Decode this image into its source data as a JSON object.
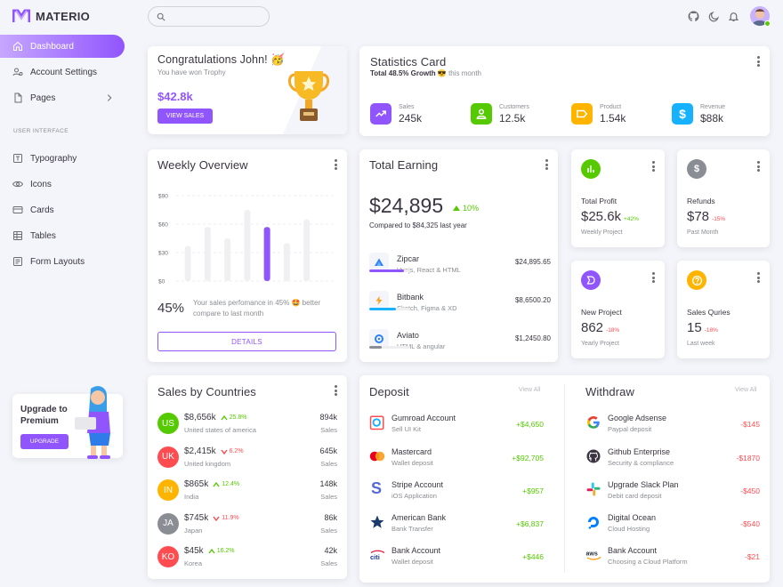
{
  "brand": {
    "name": "MATERIO",
    "color": "#9155fd"
  },
  "colors": {
    "primary": "#9155fd",
    "success": "#56ca00",
    "warning": "#ffb400",
    "info": "#16b1ff",
    "error": "#ff4c51",
    "secondary": "#8a8d93"
  },
  "sidebar": {
    "items": [
      {
        "label": "Dashboard",
        "icon": "home-icon",
        "active": true
      },
      {
        "label": "Account Settings",
        "icon": "account-cog-icon"
      },
      {
        "label": "Pages",
        "icon": "file-icon"
      }
    ],
    "section_label": "USER INTERFACE",
    "ui_items": [
      {
        "label": "Typography",
        "icon": "typography-icon"
      },
      {
        "label": "Icons",
        "icon": "eye-icon"
      },
      {
        "label": "Cards",
        "icon": "credit-card-icon"
      },
      {
        "label": "Tables",
        "icon": "table-icon"
      },
      {
        "label": "Form Layouts",
        "icon": "form-icon"
      }
    ],
    "upgrade": {
      "title": "Upgrade to Premium",
      "button": "UPGRADE"
    }
  },
  "topbar": {
    "search_placeholder": ""
  },
  "trophy": {
    "title": "Congratulations John! 🥳",
    "subtitle": "You have won Trophy",
    "amount": "$42.8k",
    "button": "VIEW SALES"
  },
  "statistics": {
    "title": "Statistics Card",
    "growth": "Total 48.5% Growth",
    "emoji": "😎",
    "period": "this month",
    "items": [
      {
        "label": "Sales",
        "value": "245k",
        "color": "#9155fd",
        "icon": "trending-up-icon"
      },
      {
        "label": "Customers",
        "value": "12.5k",
        "color": "#56ca00",
        "icon": "account-icon"
      },
      {
        "label": "Product",
        "value": "1.54k",
        "color": "#ffb400",
        "icon": "label-icon"
      },
      {
        "label": "Revenue",
        "value": "$88k",
        "color": "#16b1ff",
        "icon": "dollar-icon"
      }
    ]
  },
  "weekly": {
    "title": "Weekly Overview",
    "percent": "45%",
    "text": "Your sales perfomance in 45% 🤩 better compare to last month",
    "button": "DETAILS",
    "chart_data": {
      "type": "bar",
      "categories": [
        "",
        "",
        "",
        "",
        "",
        "",
        "",
        ""
      ],
      "values": [
        37,
        57,
        45,
        75,
        57,
        40,
        65,
        0
      ],
      "highlight_index": 4,
      "yticks": [
        "$90",
        "$60",
        "$30",
        "$0"
      ],
      "ylim": [
        0,
        90
      ]
    }
  },
  "earning": {
    "title": "Total Earning",
    "amount": "$24,895",
    "change": "10%",
    "compare": "Compared to $84,325 last year",
    "items": [
      {
        "name": "Zipcar",
        "sub": "Vuejs, React & HTML",
        "amount": "$24,895.65",
        "progress": 0.85,
        "color": "#9155fd",
        "icon": "zipcar-icon"
      },
      {
        "name": "Bitbank",
        "sub": "Sketch, Figma & XD",
        "amount": "$8,6500.20",
        "progress": 0.65,
        "color": "#16b1ff",
        "icon": "bitbank-icon"
      },
      {
        "name": "Aviato",
        "sub": "HTML & angular",
        "amount": "$1,2450.80",
        "progress": 0.3,
        "color": "#8a8d93",
        "icon": "aviato-icon"
      }
    ]
  },
  "mini_cards": [
    {
      "label": "Total Profit",
      "value": "$25.6k",
      "change": "+42%",
      "positive": true,
      "period": "Weekly Project",
      "color": "#56ca00",
      "icon": "poll-icon"
    },
    {
      "label": "Refunds",
      "value": "$78",
      "change": "-15%",
      "positive": false,
      "period": "Past Month",
      "color": "#8a8d93",
      "icon": "currency-icon"
    },
    {
      "label": "New Project",
      "value": "862",
      "change": "-18%",
      "positive": false,
      "period": "Yearly Project",
      "color": "#9155fd",
      "icon": "briefcase-icon"
    },
    {
      "label": "Sales Quries",
      "value": "15",
      "change": "-18%",
      "positive": false,
      "period": "Last week",
      "color": "#ffb400",
      "icon": "help-circle-icon"
    }
  ],
  "countries": {
    "title": "Sales by Countries",
    "sales_label": "Sales",
    "rows": [
      {
        "code": "US",
        "amount": "$8,656k",
        "change": "25.8%",
        "up": true,
        "country": "United states of america",
        "sales": "894k",
        "color": "#56ca00"
      },
      {
        "code": "UK",
        "amount": "$2,415k",
        "change": "6.2%",
        "up": false,
        "country": "United kingdom",
        "sales": "645k",
        "color": "#ff4c51"
      },
      {
        "code": "IN",
        "amount": "$865k",
        "change": "12.4%",
        "up": true,
        "country": "India",
        "sales": "148k",
        "color": "#ffb400"
      },
      {
        "code": "JA",
        "amount": "$745k",
        "change": "11.9%",
        "up": false,
        "country": "Japan",
        "sales": "86k",
        "color": "#8a8d93"
      },
      {
        "code": "KO",
        "amount": "$45k",
        "change": "16.2%",
        "up": true,
        "country": "Korea",
        "sales": "42k",
        "color": "#ff4c51"
      }
    ]
  },
  "deposit": {
    "title": "Deposit",
    "view_all": "View All",
    "rows": [
      {
        "name": "Gumroad Account",
        "sub": "Sell UI Kit",
        "amount": "+$4,650",
        "icon": "gumroad-icon"
      },
      {
        "name": "Mastercard",
        "sub": "Wallet deposit",
        "amount": "+$92,705",
        "icon": "mastercard-icon"
      },
      {
        "name": "Stripe Account",
        "sub": "iOS Application",
        "amount": "+$957",
        "icon": "stripe-icon"
      },
      {
        "name": "American Bank",
        "sub": "Bank Transfer",
        "amount": "+$6,837",
        "icon": "american-bank-icon"
      },
      {
        "name": "Bank Account",
        "sub": "Wallet deposit",
        "amount": "+$446",
        "icon": "citi-icon"
      }
    ]
  },
  "withdraw": {
    "title": "Withdraw",
    "view_all": "View All",
    "rows": [
      {
        "name": "Google Adsense",
        "sub": "Paypal deposit",
        "amount": "-$145",
        "icon": "google-icon"
      },
      {
        "name": "Github Enterprise",
        "sub": "Security & compliance",
        "amount": "-$1870",
        "icon": "github-icon"
      },
      {
        "name": "Upgrade Slack Plan",
        "sub": "Debit card deposit",
        "amount": "-$450",
        "icon": "slack-icon"
      },
      {
        "name": "Digital Ocean",
        "sub": "Cloud Hosting",
        "amount": "-$540",
        "icon": "digital-ocean-icon"
      },
      {
        "name": "Bank Account",
        "sub": "Choosing a Cloud Platform",
        "amount": "-$21",
        "icon": "aws-icon"
      }
    ]
  }
}
